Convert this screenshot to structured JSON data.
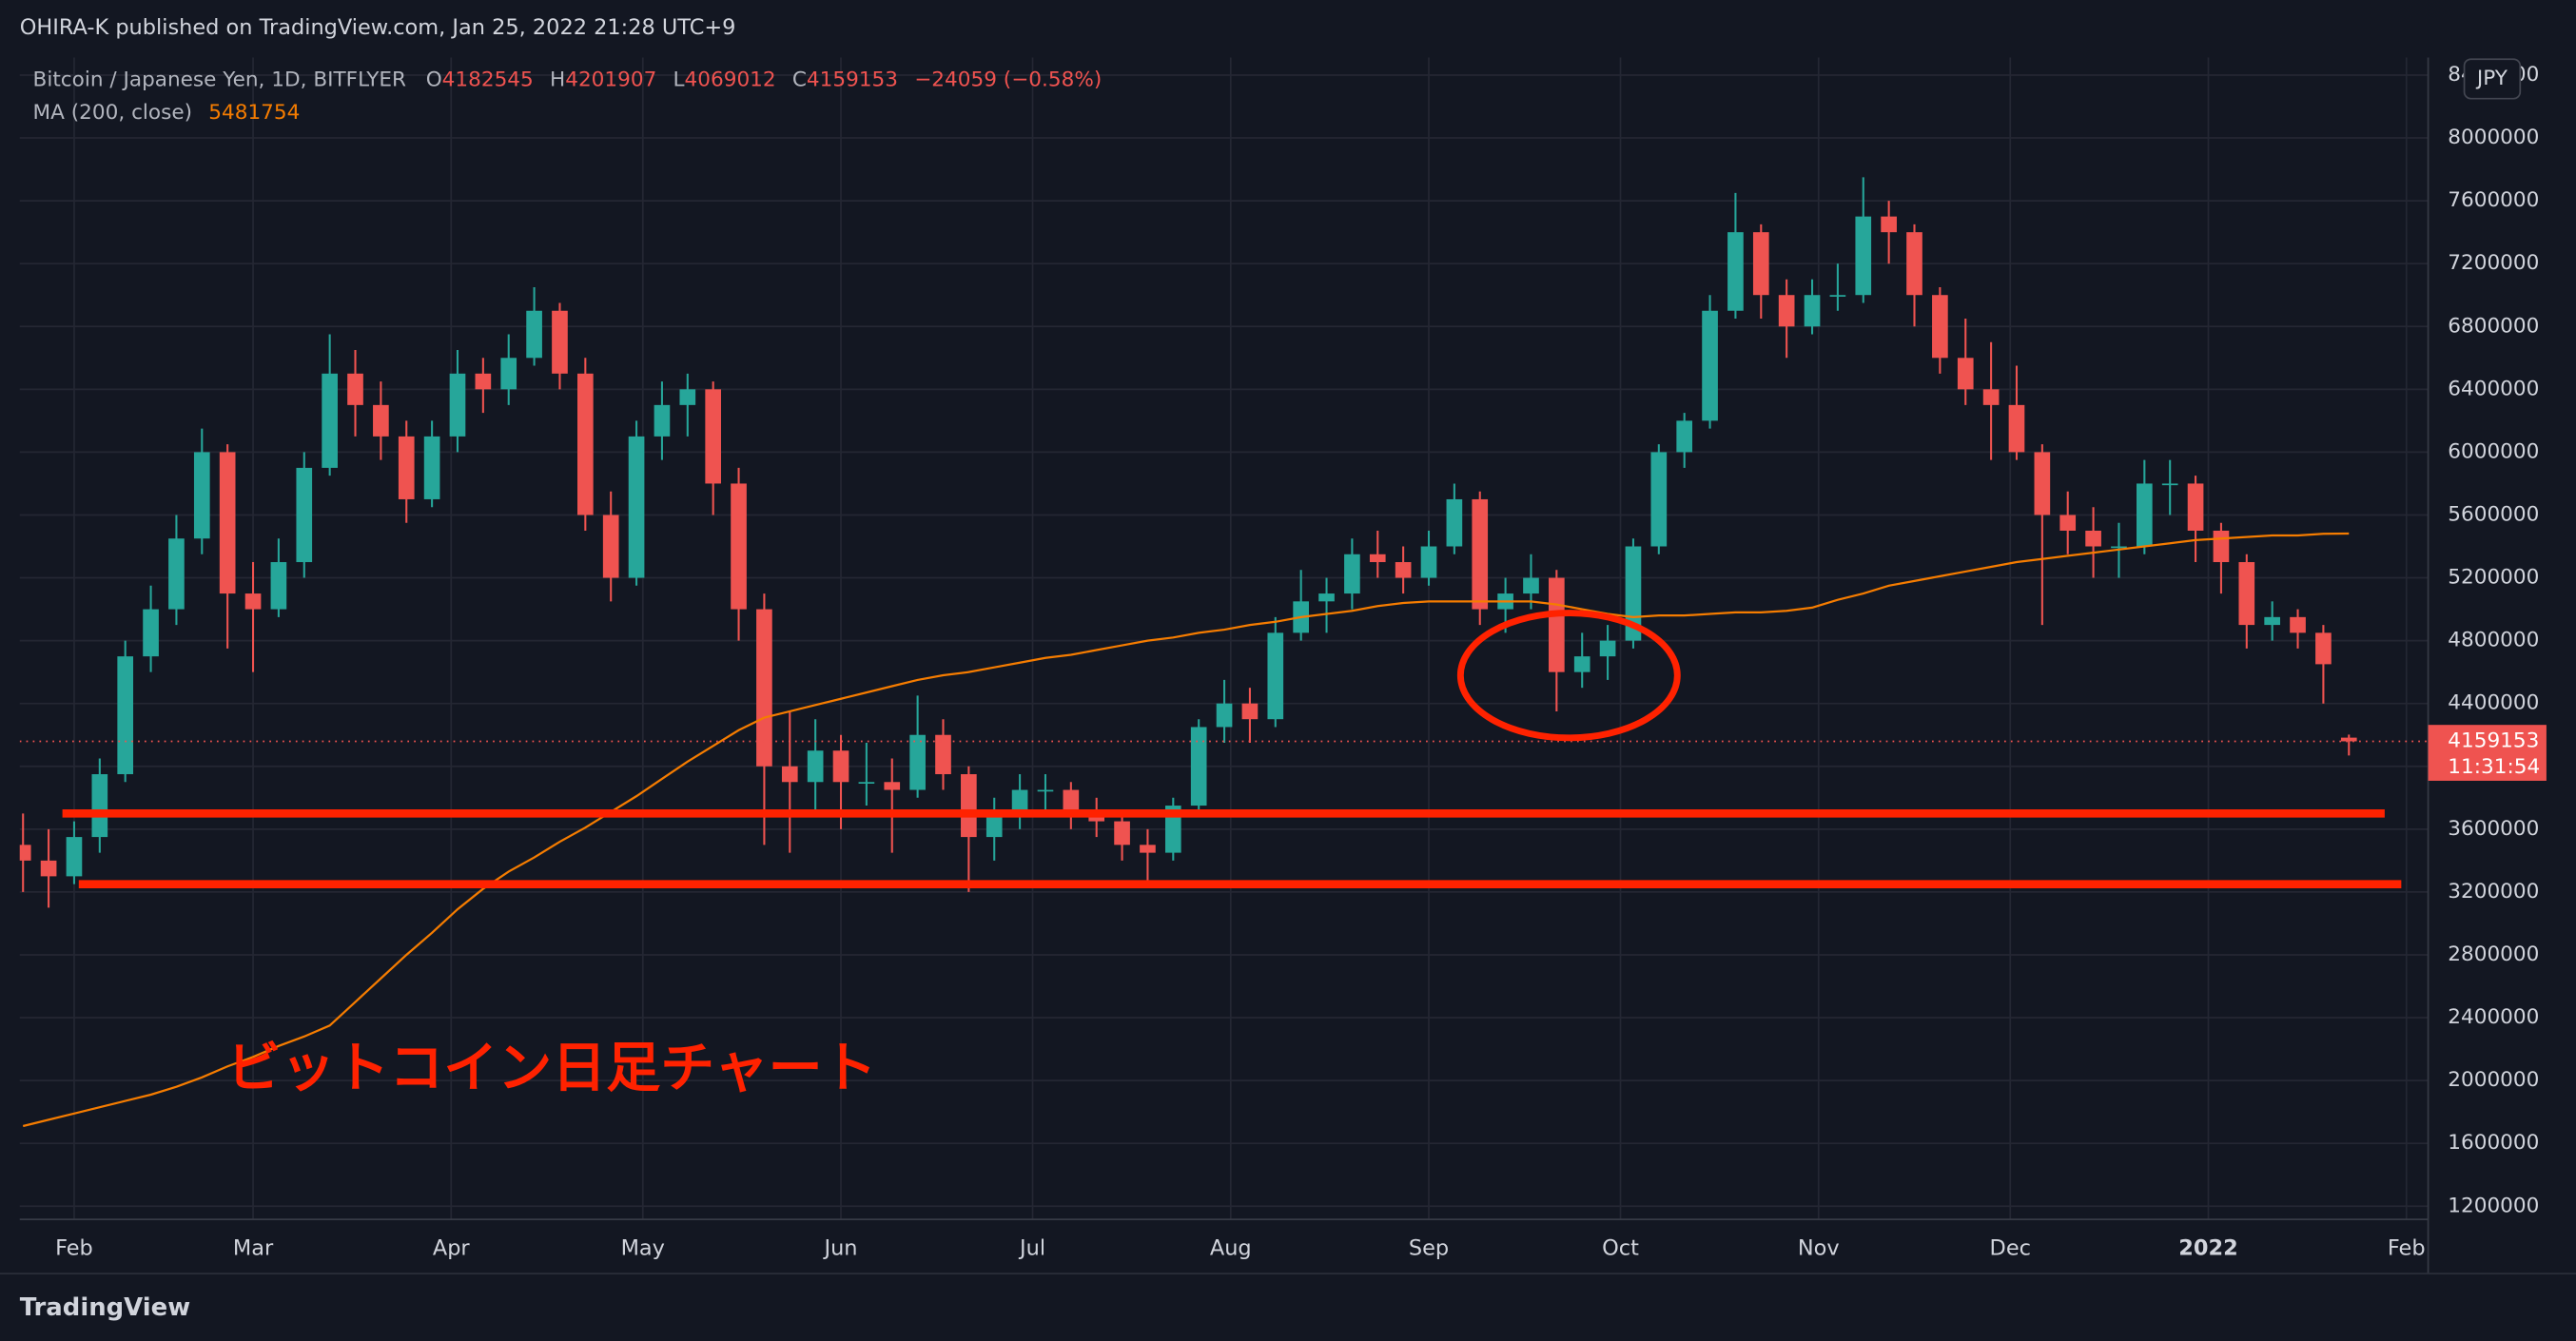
{
  "header": {
    "published": "OHIRA-K published on TradingView.com, Jan 25, 2022 21:28 UTC+9",
    "brand": "TradingView"
  },
  "chart_data": {
    "type": "candlestick",
    "title": "Bitcoin / Japanese Yen, 1D, BITFLYER",
    "ohlc_labels": [
      "O",
      "H",
      "L",
      "C"
    ],
    "change": "−24059 (−0.58%)",
    "ma_label": "MA (200, close)",
    "currency": "JPY",
    "countdown": "11:31:54",
    "annotation": "ビットコイン日足チャート",
    "up_color": "#26a69a",
    "down_color": "#ef5350",
    "ma_color": "#f57c00",
    "level_color": "#ff2200",
    "candles": [
      [
        3500000,
        3700000,
        3200000,
        3400000
      ],
      [
        3400000,
        3600000,
        3100000,
        3300000
      ],
      [
        3300000,
        3650000,
        3250000,
        3550000
      ],
      [
        3550000,
        4050000,
        3450000,
        3950000
      ],
      [
        3950000,
        4800000,
        3900000,
        4700000
      ],
      [
        4700000,
        5150000,
        4600000,
        5000000
      ],
      [
        5000000,
        5600000,
        4900000,
        5450000
      ],
      [
        5450000,
        6150000,
        5350000,
        6000000
      ],
      [
        6000000,
        6050000,
        4750000,
        5100000
      ],
      [
        5100000,
        5300000,
        4600000,
        5000000
      ],
      [
        5000000,
        5450000,
        4950000,
        5300000
      ],
      [
        5300000,
        6000000,
        5200000,
        5900000
      ],
      [
        5900000,
        6750000,
        5850000,
        6500000
      ],
      [
        6500000,
        6650000,
        6100000,
        6300000
      ],
      [
        6300000,
        6450000,
        5950000,
        6100000
      ],
      [
        6100000,
        6200000,
        5550000,
        5700000
      ],
      [
        5700000,
        6200000,
        5650000,
        6100000
      ],
      [
        6100000,
        6650000,
        6000000,
        6500000
      ],
      [
        6500000,
        6600000,
        6250000,
        6400000
      ],
      [
        6400000,
        6750000,
        6300000,
        6600000
      ],
      [
        6600000,
        7050000,
        6550000,
        6900000
      ],
      [
        6900000,
        6950000,
        6400000,
        6500000
      ],
      [
        6500000,
        6600000,
        5500000,
        5600000
      ],
      [
        5600000,
        5750000,
        5050000,
        5200000
      ],
      [
        5200000,
        6200000,
        5150000,
        6100000
      ],
      [
        6100000,
        6450000,
        5950000,
        6300000
      ],
      [
        6300000,
        6500000,
        6100000,
        6400000
      ],
      [
        6400000,
        6450000,
        5600000,
        5800000
      ],
      [
        5800000,
        5900000,
        4800000,
        5000000
      ],
      [
        5000000,
        5100000,
        3500000,
        4000000
      ],
      [
        4000000,
        4350000,
        3450000,
        3900000
      ],
      [
        3900000,
        4300000,
        3700000,
        4100000
      ],
      [
        4100000,
        4200000,
        3600000,
        3900000
      ],
      [
        3900000,
        4150000,
        3750000,
        3900000
      ],
      [
        3900000,
        4050000,
        3450000,
        3850000
      ],
      [
        3850000,
        4450000,
        3800000,
        4200000
      ],
      [
        4200000,
        4300000,
        3850000,
        3950000
      ],
      [
        3950000,
        4000000,
        3200000,
        3550000
      ],
      [
        3550000,
        3800000,
        3400000,
        3700000
      ],
      [
        3700000,
        3950000,
        3600000,
        3850000
      ],
      [
        3850000,
        3950000,
        3700000,
        3850000
      ],
      [
        3850000,
        3900000,
        3600000,
        3700000
      ],
      [
        3700000,
        3800000,
        3550000,
        3650000
      ],
      [
        3650000,
        3700000,
        3400000,
        3500000
      ],
      [
        3500000,
        3600000,
        3250000,
        3450000
      ],
      [
        3450000,
        3800000,
        3400000,
        3750000
      ],
      [
        3750000,
        4300000,
        3700000,
        4250000
      ],
      [
        4250000,
        4550000,
        4150000,
        4400000
      ],
      [
        4400000,
        4500000,
        4150000,
        4300000
      ],
      [
        4300000,
        4950000,
        4250000,
        4850000
      ],
      [
        4850000,
        5250000,
        4800000,
        5050000
      ],
      [
        5050000,
        5200000,
        4850000,
        5100000
      ],
      [
        5100000,
        5450000,
        5000000,
        5350000
      ],
      [
        5350000,
        5500000,
        5200000,
        5300000
      ],
      [
        5300000,
        5400000,
        5100000,
        5200000
      ],
      [
        5200000,
        5500000,
        5150000,
        5400000
      ],
      [
        5400000,
        5800000,
        5350000,
        5700000
      ],
      [
        5700000,
        5750000,
        4900000,
        5000000
      ],
      [
        5000000,
        5200000,
        4850000,
        5100000
      ],
      [
        5100000,
        5350000,
        5000000,
        5200000
      ],
      [
        5200000,
        5250000,
        4350000,
        4600000
      ],
      [
        4600000,
        4850000,
        4500000,
        4700000
      ],
      [
        4700000,
        4900000,
        4550000,
        4800000
      ],
      [
        4800000,
        5450000,
        4750000,
        5400000
      ],
      [
        5400000,
        6050000,
        5350000,
        6000000
      ],
      [
        6000000,
        6250000,
        5900000,
        6200000
      ],
      [
        6200000,
        7000000,
        6150000,
        6900000
      ],
      [
        6900000,
        7650000,
        6850000,
        7400000
      ],
      [
        7400000,
        7450000,
        6850000,
        7000000
      ],
      [
        7000000,
        7100000,
        6600000,
        6800000
      ],
      [
        6800000,
        7100000,
        6750000,
        7000000
      ],
      [
        7000000,
        7200000,
        6900000,
        7000000
      ],
      [
        7000000,
        7750000,
        6950000,
        7500000
      ],
      [
        7500000,
        7600000,
        7200000,
        7400000
      ],
      [
        7400000,
        7450000,
        6800000,
        7000000
      ],
      [
        7000000,
        7050000,
        6500000,
        6600000
      ],
      [
        6600000,
        6850000,
        6300000,
        6400000
      ],
      [
        6400000,
        6700000,
        5950000,
        6300000
      ],
      [
        6300000,
        6550000,
        5950000,
        6000000
      ],
      [
        6000000,
        6050000,
        4900000,
        5600000
      ],
      [
        5600000,
        5750000,
        5350000,
        5500000
      ],
      [
        5500000,
        5650000,
        5200000,
        5400000
      ],
      [
        5400000,
        5550000,
        5200000,
        5400000
      ],
      [
        5400000,
        5950000,
        5350000,
        5800000
      ],
      [
        5800000,
        5950000,
        5600000,
        5800000
      ],
      [
        5800000,
        5850000,
        5300000,
        5500000
      ],
      [
        5500000,
        5550000,
        5100000,
        5300000
      ],
      [
        5300000,
        5350000,
        4750000,
        4900000
      ],
      [
        4900000,
        5050000,
        4800000,
        4950000
      ],
      [
        4950000,
        5000000,
        4750000,
        4850000
      ],
      [
        4850000,
        4900000,
        4400000,
        4650000
      ],
      [
        4182545,
        4201907,
        4069012,
        4159153
      ]
    ],
    "ma": [
      1710000,
      1750000,
      1790000,
      1830000,
      1870000,
      1910000,
      1960000,
      2020000,
      2090000,
      2150000,
      2220000,
      2280000,
      2350000,
      2500000,
      2650000,
      2800000,
      2940000,
      3090000,
      3220000,
      3330000,
      3420000,
      3520000,
      3610000,
      3710000,
      3810000,
      3920000,
      4030000,
      4130000,
      4230000,
      4310000,
      4350000,
      4390000,
      4430000,
      4470000,
      4510000,
      4550000,
      4580000,
      4600000,
      4630000,
      4660000,
      4690000,
      4710000,
      4740000,
      4770000,
      4800000,
      4820000,
      4850000,
      4870000,
      4900000,
      4920000,
      4950000,
      4970000,
      4990000,
      5020000,
      5040000,
      5050000,
      5050000,
      5050000,
      5050000,
      5050000,
      5030000,
      5000000,
      4970000,
      4950000,
      4960000,
      4960000,
      4970000,
      4980000,
      4980000,
      4990000,
      5010000,
      5060000,
      5100000,
      5150000,
      5180000,
      5210000,
      5240000,
      5270000,
      5300000,
      5320000,
      5340000,
      5360000,
      5380000,
      5400000,
      5420000,
      5440000,
      5450000,
      5460000,
      5470000,
      5470000,
      5480000,
      5481754
    ],
    "levels": [
      3700000,
      3250000
    ],
    "ylim": [
      1116000,
      8512000
    ],
    "yticks": [
      1200000,
      1600000,
      2000000,
      2400000,
      2800000,
      3200000,
      3600000,
      4000000,
      4400000,
      4800000,
      5200000,
      5600000,
      6000000,
      6400000,
      6800000,
      7200000,
      7600000,
      8000000,
      8400000
    ],
    "xlim": [
      -0.13,
      94.1
    ],
    "xticks": [
      {
        "value": 2,
        "label": "Feb"
      },
      {
        "value": 9,
        "label": "Mar"
      },
      {
        "value": 16.75,
        "label": "Apr"
      },
      {
        "value": 24.25,
        "label": "May"
      },
      {
        "value": 32,
        "label": "Jun"
      },
      {
        "value": 39.5,
        "label": "Jul"
      },
      {
        "value": 47.25,
        "label": "Aug"
      },
      {
        "value": 55,
        "label": "Sep"
      },
      {
        "value": 62.5,
        "label": "Oct"
      },
      {
        "value": 70.25,
        "label": "Nov"
      },
      {
        "value": 77.75,
        "label": "Dec"
      },
      {
        "value": 85.5,
        "label": "2022"
      },
      {
        "value": 93.25,
        "label": "Feb"
      }
    ],
    "grid": true
  }
}
